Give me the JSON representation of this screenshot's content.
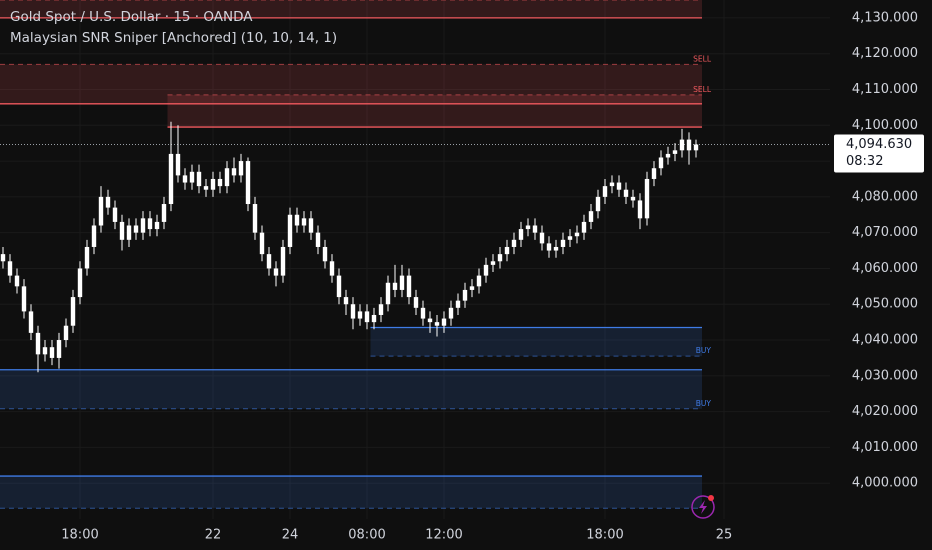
{
  "chart_data": {
    "type": "candlestick",
    "title": "Gold Spot / U.S. Dollar · 15 · OANDA",
    "subtitle": "Malaysian SNR Sniper [Anchored] (10, 10, 14, 1)",
    "candle_color": "#ffffff",
    "grid": true,
    "categories": [
      null,
      null,
      null,
      null,
      null,
      null,
      null,
      null,
      null,
      null,
      null,
      "18:00",
      null,
      null,
      null,
      null,
      null,
      null,
      null,
      null,
      null,
      null,
      null,
      null,
      null,
      null,
      null,
      null,
      null,
      null,
      "22",
      null,
      null,
      null,
      null,
      null,
      null,
      null,
      null,
      null,
      null,
      "24",
      null,
      null,
      null,
      null,
      null,
      null,
      null,
      null,
      null,
      null,
      "08:00",
      null,
      null,
      null,
      null,
      null,
      null,
      null,
      null,
      null,
      null,
      "12:00",
      null,
      null,
      null,
      null,
      null,
      null,
      null,
      null,
      null,
      null,
      null,
      null,
      null,
      null,
      null,
      null,
      null,
      null,
      null,
      null,
      null,
      null,
      "18:00",
      null,
      null,
      null,
      null,
      null,
      null,
      null,
      null,
      null,
      null,
      null,
      null,
      null,
      null,
      null,
      null,
      "25"
    ],
    "open": [
      4064,
      4062,
      4058,
      4055,
      4048,
      4042,
      4036,
      4038,
      4035,
      4040,
      4044,
      4052,
      4060,
      4066,
      4072,
      4080,
      4077,
      4073,
      4068,
      4072,
      4070,
      4074,
      4071,
      4073,
      4078,
      4092,
      4086,
      4084,
      4087,
      4083,
      4082,
      4085,
      4083,
      4088,
      4086,
      4090,
      4078,
      4070,
      4064,
      4060,
      4058,
      4066,
      4075,
      4072,
      4074,
      4070,
      4066,
      4062,
      4058,
      4052,
      4050,
      4046,
      4048,
      4045,
      4047,
      4050,
      4056,
      4054,
      4058,
      4052,
      4049,
      4046,
      4045,
      4044,
      4046,
      4049,
      4051,
      4054,
      4055,
      4058,
      4061,
      4062,
      4064,
      4066,
      4068,
      4071,
      4072,
      4070,
      4067,
      4065,
      4066,
      4068,
      4069,
      4070,
      4073,
      4076,
      4080,
      4083,
      4084,
      4082,
      4080,
      4079,
      4074,
      4085,
      4088,
      4091,
      4092,
      4093,
      4096,
      4093,
      null,
      null,
      null,
      null
    ],
    "high": [
      4066,
      4064,
      4060,
      4057,
      4050,
      4044,
      4040,
      4040,
      4042,
      4046,
      4054,
      4062,
      4068,
      4074,
      4083,
      4082,
      4079,
      4075,
      4074,
      4074,
      4076,
      4076,
      4075,
      4080,
      4101,
      4100,
      4088,
      4089,
      4089,
      4085,
      4087,
      4087,
      4090,
      4091,
      4092,
      4091,
      4080,
      4072,
      4066,
      4062,
      4068,
      4077,
      4077,
      4076,
      4076,
      4072,
      4068,
      4064,
      4060,
      4054,
      4052,
      4050,
      4050,
      4049,
      4052,
      4058,
      4061,
      4061,
      4060,
      4054,
      4051,
      4048,
      4047,
      4048,
      4051,
      4053,
      4056,
      4057,
      4060,
      4063,
      4064,
      4066,
      4068,
      4070,
      4073,
      4074,
      4074,
      4072,
      4069,
      4068,
      4070,
      4071,
      4072,
      4075,
      4078,
      4082,
      4085,
      4086,
      4086,
      4084,
      4082,
      4081,
      4087,
      4090,
      4093,
      4094,
      4095,
      4099,
      4098,
      4096,
      null,
      null,
      null,
      null
    ],
    "low": [
      4060,
      4056,
      4053,
      4046,
      4040,
      4031,
      4034,
      4033,
      4032,
      4038,
      4042,
      4050,
      4058,
      4064,
      4070,
      4075,
      4071,
      4065,
      4066,
      4068,
      4068,
      4069,
      4069,
      4071,
      4076,
      4084,
      4082,
      4082,
      4081,
      4080,
      4080,
      4081,
      4081,
      4084,
      4084,
      4076,
      4068,
      4062,
      4058,
      4055,
      4056,
      4064,
      4070,
      4070,
      4068,
      4064,
      4060,
      4056,
      4050,
      4047,
      4043,
      4044,
      4043,
      4043,
      4045,
      4048,
      4052,
      4052,
      4050,
      4047,
      4044,
      4042,
      4041,
      4042,
      4044,
      4047,
      4049,
      4052,
      4053,
      4056,
      4059,
      4060,
      4062,
      4064,
      4066,
      4069,
      4068,
      4065,
      4063,
      4063,
      4064,
      4066,
      4067,
      4068,
      4071,
      4074,
      4078,
      4081,
      4080,
      4078,
      4077,
      4071,
      4072,
      4083,
      4086,
      4089,
      4090,
      4091,
      4089,
      4091,
      null,
      null,
      null,
      null
    ],
    "close": [
      4062,
      4058,
      4055,
      4048,
      4042,
      4036,
      4038,
      4035,
      4040,
      4044,
      4052,
      4060,
      4066,
      4072,
      4080,
      4077,
      4073,
      4068,
      4072,
      4070,
      4074,
      4071,
      4073,
      4078,
      4092,
      4086,
      4084,
      4087,
      4083,
      4082,
      4085,
      4083,
      4088,
      4086,
      4090,
      4078,
      4070,
      4064,
      4060,
      4058,
      4066,
      4075,
      4072,
      4074,
      4070,
      4066,
      4062,
      4058,
      4052,
      4050,
      4046,
      4048,
      4045,
      4047,
      4050,
      4056,
      4054,
      4058,
      4052,
      4049,
      4046,
      4045,
      4044,
      4046,
      4049,
      4051,
      4054,
      4055,
      4058,
      4061,
      4062,
      4064,
      4066,
      4068,
      4071,
      4072,
      4070,
      4067,
      4065,
      4066,
      4068,
      4069,
      4070,
      4073,
      4076,
      4080,
      4083,
      4084,
      4082,
      4080,
      4079,
      4074,
      4085,
      4088,
      4091,
      4092,
      4093,
      4096,
      4093,
      4094.63,
      null,
      null,
      null,
      null
    ],
    "ylim": [
      3990,
      4135
    ],
    "yticks": [
      {
        "value": 4000,
        "label": "4,000.000"
      },
      {
        "value": 4010,
        "label": "4,010.000"
      },
      {
        "value": 4020,
        "label": "4,020.000"
      },
      {
        "value": 4030,
        "label": "4,030.000"
      },
      {
        "value": 4040,
        "label": "4,040.000"
      },
      {
        "value": 4050,
        "label": "4,050.000"
      },
      {
        "value": 4060,
        "label": "4,060.000"
      },
      {
        "value": 4070,
        "label": "4,070.000"
      },
      {
        "value": 4080,
        "label": "4,080.000"
      },
      {
        "value": 4090,
        "label": "4,090.000"
      },
      {
        "value": 4100,
        "label": "4,100.000"
      },
      {
        "value": 4110,
        "label": "4,110.000"
      },
      {
        "value": 4120,
        "label": "4,120.000"
      },
      {
        "value": 4130,
        "label": "4,130.000"
      }
    ],
    "price_marker": {
      "value": 4094.63,
      "label": "4,094.630",
      "countdown": "08:32"
    },
    "zones": [
      {
        "top": 4135,
        "bottom": 4130,
        "start": 0,
        "color": "#f0595e"
      },
      {
        "top": 4117,
        "bottom": 4106,
        "start": 0,
        "color": "#f0595e",
        "label": "SELL"
      },
      {
        "top": 4108.5,
        "bottom": 4099.5,
        "start": 24,
        "color": "#f0595e",
        "label": "SELL"
      },
      {
        "top": 4043.5,
        "bottom": 4035.5,
        "start": 53,
        "color": "#3f7be6",
        "label": "BUY"
      },
      {
        "top": 4031.7,
        "bottom": 4020.8,
        "start": 0,
        "color": "#3f7be6",
        "label": "BUY"
      },
      {
        "top": 4002,
        "bottom": 3993,
        "start": 0,
        "color": "#3f7be6"
      }
    ]
  }
}
